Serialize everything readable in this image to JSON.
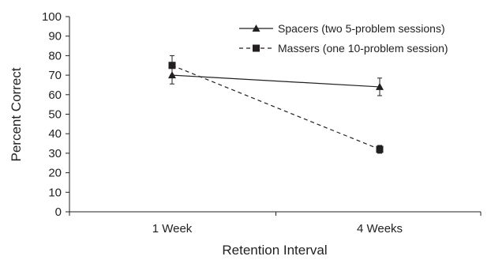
{
  "chart_data": {
    "type": "line",
    "xlabel": "Retention Interval",
    "ylabel": "Percent Correct",
    "categories": [
      "1 Week",
      "4 Weeks"
    ],
    "ylim": [
      0,
      100
    ],
    "yticks": [
      0,
      10,
      20,
      30,
      40,
      50,
      60,
      70,
      80,
      90,
      100
    ],
    "grid": false,
    "legend_position": "top-right",
    "series": [
      {
        "name": "Spacers (two 5-problem sessions)",
        "values": [
          70,
          64
        ],
        "error": [
          4.5,
          4.5
        ],
        "marker": "triangle",
        "line_style": "solid",
        "color": "#231f20"
      },
      {
        "name": "Massers (one 10-problem session)",
        "values": [
          75,
          32
        ],
        "error": [
          5,
          2
        ],
        "marker": "square",
        "line_style": "dashed",
        "color": "#231f20"
      }
    ]
  }
}
